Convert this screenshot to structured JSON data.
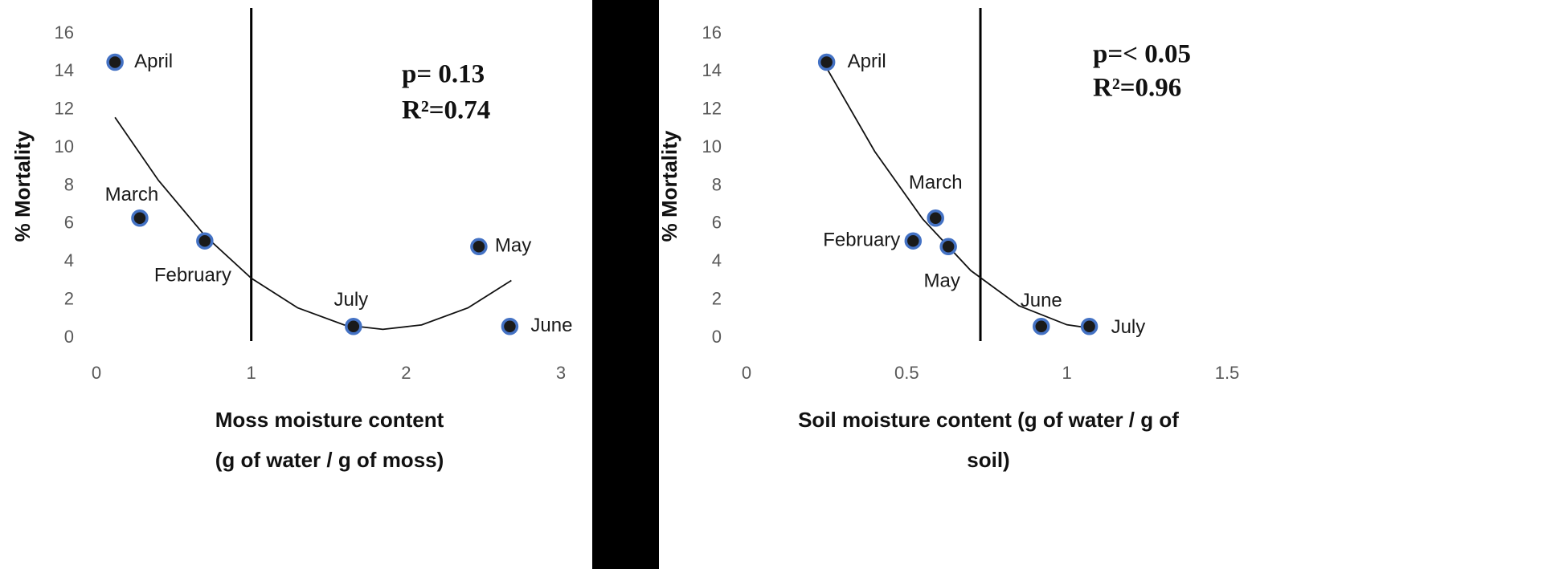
{
  "chart_data": [
    {
      "type": "scatter",
      "ylabel": "% Mortality",
      "xlabel": [
        "Moss moisture content",
        "(g of water / g of moss)"
      ],
      "annotations": [
        "p= 0.13",
        "R²=0.74"
      ],
      "point_labels": [
        "February",
        "March",
        "April",
        "May",
        "June",
        "July"
      ],
      "x": [
        0.7,
        0.28,
        0.12,
        2.47,
        2.67,
        1.66
      ],
      "values": [
        5.1,
        6.3,
        14.5,
        4.8,
        0.6,
        0.6
      ],
      "color": "#1a1a1a",
      "edge_color": "#4472c4",
      "trendline": {
        "x": [
          0.12,
          0.4,
          0.7,
          1.0,
          1.3,
          1.6,
          1.85,
          2.1,
          2.4,
          2.68
        ],
        "values": [
          11.6,
          8.29,
          5.38,
          3.14,
          1.58,
          0.68,
          0.45,
          0.68,
          1.58,
          3.02
        ],
        "color": "#111111"
      },
      "vline": 1,
      "xlim": [
        0,
        3
      ],
      "xticks": [
        0,
        1,
        2,
        3
      ],
      "ylim": [
        0,
        16
      ],
      "yticks": [
        0,
        2,
        4,
        6,
        8,
        10,
        12,
        14,
        16
      ],
      "grid": false
    },
    {
      "type": "scatter",
      "ylabel": "% Mortality",
      "xlabel": [
        "Soil moisture content (g of water / g of",
        "soil)"
      ],
      "annotations": [
        "p=< 0.05",
        "R²=0.96"
      ],
      "point_labels": [
        "February",
        "March",
        "April",
        "May",
        "June",
        "July"
      ],
      "x": [
        0.52,
        0.59,
        0.25,
        0.63,
        0.92,
        1.07
      ],
      "values": [
        5.1,
        6.3,
        14.5,
        4.8,
        0.6,
        0.6
      ],
      "color": "#1a1a1a",
      "edge_color": "#4472c4",
      "trendline": {
        "x": [
          0.25,
          0.4,
          0.55,
          0.7,
          0.85,
          1.0,
          1.07
        ],
        "values": [
          14.2,
          9.81,
          6.25,
          3.54,
          1.69,
          0.69,
          0.52
        ],
        "color": "#111111"
      },
      "vline": 0.73,
      "xlim": [
        0,
        1.5
      ],
      "xticks": [
        0,
        0.5,
        1,
        1.5
      ],
      "ylim": [
        0,
        16
      ],
      "yticks": [
        0,
        2,
        4,
        6,
        8,
        10,
        12,
        14,
        16
      ],
      "grid": false
    }
  ]
}
